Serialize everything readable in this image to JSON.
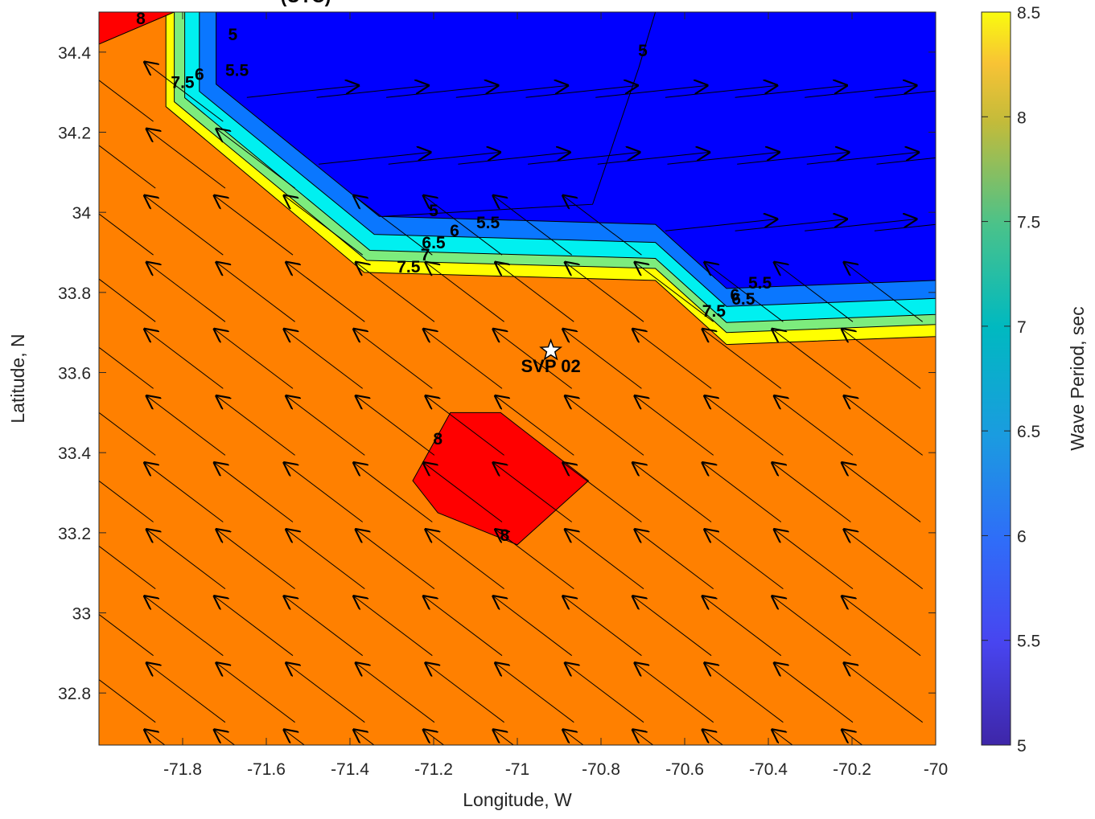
{
  "chart_data": {
    "type": "contour",
    "title": "(UTC)",
    "xlabel": "Longitude, W",
    "ylabel": "Latitude, N",
    "xlim": [
      -72.0,
      -70.0
    ],
    "ylim": [
      32.67,
      34.5
    ],
    "xticks": [
      -71.8,
      -71.6,
      -71.4,
      -71.2,
      -71,
      -70.8,
      -70.6,
      -70.4,
      -70.2,
      -70
    ],
    "xtick_labels": [
      "-71.8",
      "-71.6",
      "-71.4",
      "-71.2",
      "-71",
      "-70.8",
      "-70.6",
      "-70.4",
      "-70.2",
      "-70"
    ],
    "yticks": [
      32.8,
      33,
      33.2,
      33.4,
      33.6,
      33.8,
      34,
      34.2,
      34.4
    ],
    "ytick_labels": [
      "32.8",
      "33",
      "33.2",
      "33.4",
      "33.6",
      "33.8",
      "34",
      "34.2",
      "34.4"
    ],
    "colorbar": {
      "label": "Wave Period, sec",
      "range": [
        5,
        8.5
      ],
      "ticks": [
        "5",
        "5.5",
        "6",
        "6.5",
        "7",
        "7.5",
        "8",
        "8.5"
      ]
    },
    "colors": {
      "low_band": "#0000ff",
      "band_5_5": "#0a77ff",
      "band_6_5": "#00f0f0",
      "band_7": "#7dec7d",
      "band_7_5": "#ffff00",
      "mid_band": "#ff8000",
      "high_band": "#ff0000",
      "arrows": "#000000"
    },
    "regions": [
      {
        "name": "low",
        "value_range": "<5",
        "boundary": [
          [
            -71.72,
            34.5
          ],
          [
            -71.72,
            34.32
          ],
          [
            -71.33,
            33.99
          ],
          [
            -70.67,
            33.97
          ],
          [
            -70.5,
            33.81
          ],
          [
            -70.0,
            33.83
          ],
          [
            -70.0,
            34.5
          ]
        ]
      },
      {
        "name": "high-nw-corner",
        "value_range": ">8",
        "boundary": [
          [
            -72.0,
            34.42
          ],
          [
            -72.0,
            34.5
          ],
          [
            -71.82,
            34.5
          ]
        ]
      },
      {
        "name": "high-central",
        "value_range": ">8",
        "boundary": [
          [
            -71.16,
            33.5
          ],
          [
            -71.04,
            33.5
          ],
          [
            -70.83,
            33.33
          ],
          [
            -71.0,
            33.17
          ],
          [
            -71.19,
            33.25
          ],
          [
            -71.25,
            33.33
          ]
        ]
      }
    ],
    "contour_labels": [
      {
        "text": "8",
        "lon": -71.9,
        "lat": 34.47
      },
      {
        "text": "5",
        "lon": -71.68,
        "lat": 34.43
      },
      {
        "text": "5",
        "lon": -70.7,
        "lat": 34.39
      },
      {
        "text": "5.5",
        "lon": -71.67,
        "lat": 34.34
      },
      {
        "text": "6",
        "lon": -71.76,
        "lat": 34.33
      },
      {
        "text": "7.5",
        "lon": -71.8,
        "lat": 34.31
      },
      {
        "text": "5",
        "lon": -71.2,
        "lat": 33.99
      },
      {
        "text": "5.5",
        "lon": -71.07,
        "lat": 33.96
      },
      {
        "text": "6",
        "lon": -71.15,
        "lat": 33.94
      },
      {
        "text": "6.5",
        "lon": -71.2,
        "lat": 33.91
      },
      {
        "text": "7",
        "lon": -71.22,
        "lat": 33.88
      },
      {
        "text": "7.5",
        "lon": -71.26,
        "lat": 33.85
      },
      {
        "text": "5.5",
        "lon": -70.42,
        "lat": 33.81
      },
      {
        "text": "6.5",
        "lon": -70.46,
        "lat": 33.77
      },
      {
        "text": "6",
        "lon": -70.48,
        "lat": 33.78
      },
      {
        "text": "7.5",
        "lon": -70.53,
        "lat": 33.74
      },
      {
        "text": "8",
        "lon": -71.19,
        "lat": 33.42
      },
      {
        "text": "8",
        "lon": -71.03,
        "lat": 33.18
      }
    ],
    "contour_lines": [
      {
        "level": "5",
        "points": [
          [
            -70.67,
            34.5
          ],
          [
            -70.71,
            34.36
          ],
          [
            -70.82,
            34.02
          ],
          [
            -71.32,
            33.99
          ]
        ]
      }
    ],
    "vectors": {
      "description": "Wave direction arrows on a regular grid",
      "lon_start": -71.98,
      "lon_step": 0.1667,
      "lat_start": 32.62,
      "lat_step": 0.1667,
      "cols": 12,
      "rows": 11,
      "nw_arrow": {
        "dlon": -0.19,
        "dlat": 0.15
      },
      "east_arrow": {
        "dlon": 0.27,
        "dlat": 0.03
      }
    },
    "marker": {
      "label": "SVP 02",
      "lon": -70.92,
      "lat": 33.655,
      "symbol": "star"
    }
  }
}
